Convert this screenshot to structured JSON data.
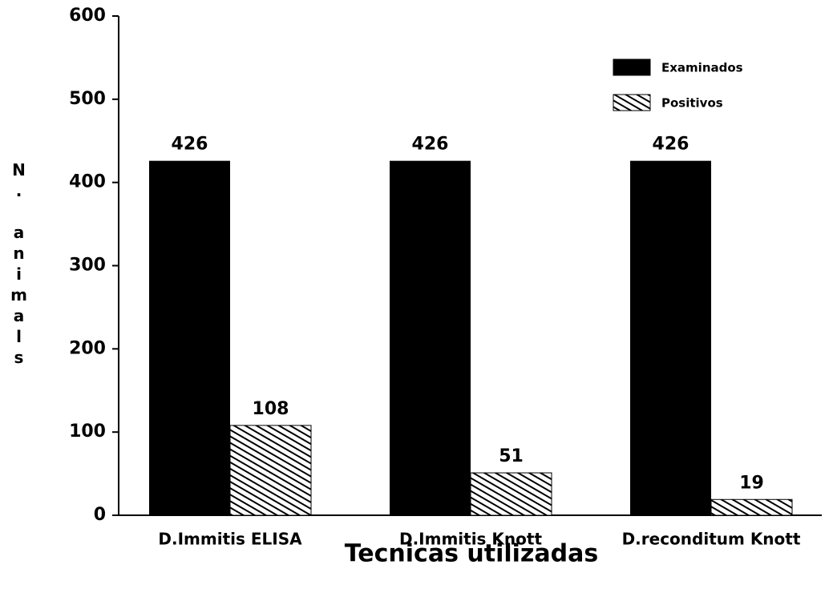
{
  "chart_data": {
    "type": "bar",
    "categories": [
      "D.Immitis ELISA",
      "D.Immitis Knott",
      "D.reconditum Knott"
    ],
    "series": [
      {
        "name": "Examinados",
        "color": "#000000",
        "values": [
          426,
          426,
          426
        ]
      },
      {
        "name": "Positivos",
        "color": "#000000",
        "pattern": "hatch",
        "values": [
          108,
          51,
          19
        ]
      }
    ],
    "xlabel": "Tecnicas utilizadas",
    "ylabel": "N. animals",
    "ylim": [
      0,
      600
    ],
    "yticks": [
      0,
      100,
      200,
      300,
      400,
      500,
      600
    ],
    "grid": false,
    "legend": "upper right"
  }
}
